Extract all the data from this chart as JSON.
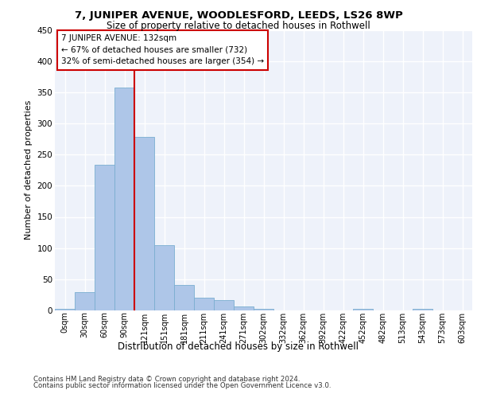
{
  "title1": "7, JUNIPER AVENUE, WOODLESFORD, LEEDS, LS26 8WP",
  "title2": "Size of property relative to detached houses in Rothwell",
  "xlabel": "Distribution of detached houses by size in Rothwell",
  "ylabel": "Number of detached properties",
  "bin_labels": [
    "0sqm",
    "30sqm",
    "60sqm",
    "90sqm",
    "121sqm",
    "151sqm",
    "181sqm",
    "211sqm",
    "241sqm",
    "271sqm",
    "302sqm",
    "332sqm",
    "362sqm",
    "392sqm",
    "422sqm",
    "452sqm",
    "482sqm",
    "513sqm",
    "543sqm",
    "573sqm",
    "603sqm"
  ],
  "bar_heights": [
    3,
    30,
    233,
    358,
    278,
    105,
    41,
    21,
    16,
    6,
    3,
    0,
    0,
    0,
    0,
    3,
    0,
    0,
    3,
    0,
    0
  ],
  "bar_color": "#aec6e8",
  "bar_edge_color": "#7aaed0",
  "vline_x_index": 4,
  "vline_color": "#cc0000",
  "annotation_text": "7 JUNIPER AVENUE: 132sqm\n← 67% of detached houses are smaller (732)\n32% of semi-detached houses are larger (354) →",
  "annotation_box_color": "#ffffff",
  "annotation_box_edge_color": "#cc0000",
  "ylim": [
    0,
    450
  ],
  "yticks": [
    0,
    50,
    100,
    150,
    200,
    250,
    300,
    350,
    400,
    450
  ],
  "footer1": "Contains HM Land Registry data © Crown copyright and database right 2024.",
  "footer2": "Contains public sector information licensed under the Open Government Licence v3.0.",
  "plot_bg_color": "#eef2fa"
}
